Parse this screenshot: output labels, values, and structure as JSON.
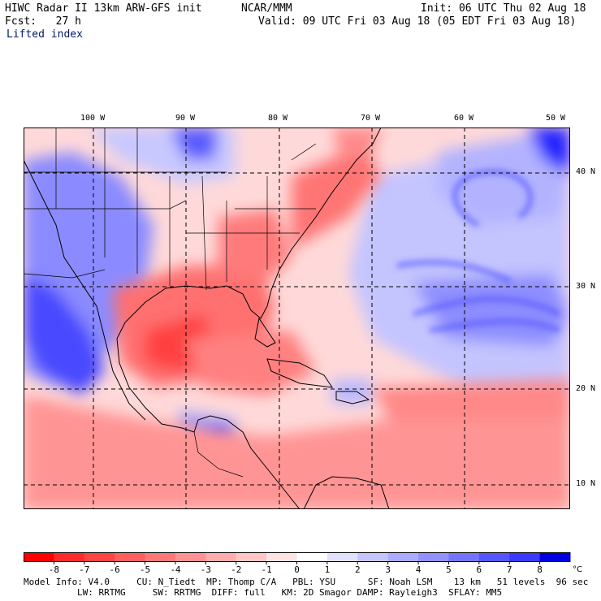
{
  "header": {
    "title": "HIWC Radar II 13km ARW-GFS init",
    "org": "NCAR/MMM",
    "init": "Init: 06 UTC Thu 02 Aug 18",
    "fcst": "Fcst:   27 h",
    "valid": "Valid: 09 UTC Fri 03 Aug 18 (05 EDT Fri 03 Aug 18)",
    "field": "Lifted index"
  },
  "map": {
    "lon_labels": [
      "100 W",
      "90 W",
      "80 W",
      "70 W",
      "60 W",
      "50 W"
    ],
    "lat_labels": [
      "40 N",
      "30 N",
      "20 N",
      "10 N"
    ],
    "colors": {
      "background": "#ffffff",
      "positive_max": "#0000e0",
      "negative_max": "#ff0000",
      "neutral": "#ffffff"
    }
  },
  "colorbar": {
    "ticks": [
      "-8",
      "-7",
      "-6",
      "-5",
      "-4",
      "-3",
      "-2",
      "-1",
      "0",
      "1",
      "2",
      "3",
      "4",
      "5",
      "6",
      "7",
      "8"
    ],
    "unit": "°C",
    "colors": [
      "#ff0000",
      "#ff2a2a",
      "#ff4444",
      "#ff5e5e",
      "#ff7878",
      "#ff9292",
      "#ffacac",
      "#ffc6c6",
      "#ffe2e2",
      "#ffffff",
      "#e2e2ff",
      "#c6c6ff",
      "#acacff",
      "#9292ff",
      "#7474ff",
      "#5656ff",
      "#3a3aff",
      "#0000e0"
    ]
  },
  "footer": {
    "line1": "Model Info: V4.0     CU: N_Tiedt  MP: Thomp C/A   PBL: YSU      SF: Noah LSM    13 km   51 levels  96 sec",
    "line2": "LW: RRTMG     SW: RRTMG  DIFF: full   KM: 2D Smagor DAMP: Rayleigh3  SFLAY: MM5"
  }
}
